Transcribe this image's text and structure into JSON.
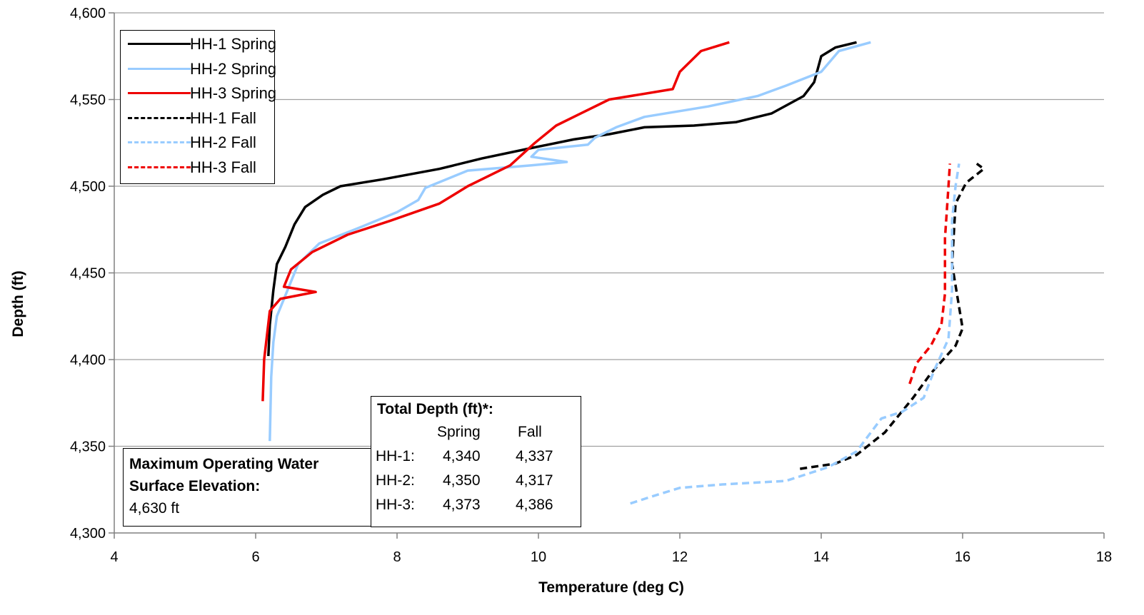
{
  "chart_data": {
    "type": "line",
    "title": "",
    "xlabel": "Temperature (deg C)",
    "ylabel": "Depth (ft)",
    "xlim": [
      4,
      18
    ],
    "ylim": [
      4300,
      4600
    ],
    "x_ticks": [
      "4",
      "6",
      "8",
      "10",
      "12",
      "14",
      "16",
      "18"
    ],
    "y_ticks": [
      "4,300",
      "4,350",
      "4,400",
      "4,450",
      "4,500",
      "4,550",
      "4,600"
    ],
    "grid": "horizontal",
    "legend_position": "top-left",
    "series": [
      {
        "name": "HH-1 Spring",
        "color": "#000000",
        "dash": "solid",
        "points": [
          [
            6.18,
            4402
          ],
          [
            6.2,
            4420
          ],
          [
            6.25,
            4440
          ],
          [
            6.3,
            4455
          ],
          [
            6.42,
            4465
          ],
          [
            6.55,
            4478
          ],
          [
            6.7,
            4488
          ],
          [
            6.95,
            4495
          ],
          [
            7.2,
            4500
          ],
          [
            7.8,
            4504
          ],
          [
            8.6,
            4510
          ],
          [
            9.2,
            4516
          ],
          [
            9.9,
            4522
          ],
          [
            10.5,
            4527
          ],
          [
            11.0,
            4530
          ],
          [
            11.5,
            4534
          ],
          [
            12.2,
            4535
          ],
          [
            12.8,
            4537
          ],
          [
            13.3,
            4542
          ],
          [
            13.75,
            4552
          ],
          [
            13.9,
            4560
          ],
          [
            14.0,
            4575
          ],
          [
            14.2,
            4580
          ],
          [
            14.5,
            4583
          ]
        ]
      },
      {
        "name": "HH-2 Spring",
        "color": "#99ccff",
        "dash": "solid",
        "points": [
          [
            6.2,
            4353
          ],
          [
            6.22,
            4390
          ],
          [
            6.25,
            4410
          ],
          [
            6.3,
            4425
          ],
          [
            6.45,
            4440
          ],
          [
            6.6,
            4455
          ],
          [
            6.9,
            4467
          ],
          [
            7.4,
            4475
          ],
          [
            8.0,
            4485
          ],
          [
            8.3,
            4492
          ],
          [
            8.4,
            4499
          ],
          [
            9.0,
            4509
          ],
          [
            9.9,
            4512
          ],
          [
            10.4,
            4514
          ],
          [
            9.9,
            4517
          ],
          [
            10.0,
            4521
          ],
          [
            10.7,
            4524
          ],
          [
            10.8,
            4528
          ],
          [
            11.1,
            4534
          ],
          [
            11.5,
            4540
          ],
          [
            12.4,
            4546
          ],
          [
            13.1,
            4552
          ],
          [
            13.5,
            4558
          ],
          [
            14.0,
            4566
          ],
          [
            14.25,
            4578
          ],
          [
            14.7,
            4583
          ]
        ]
      },
      {
        "name": "HH-3 Spring",
        "color": "#ee0000",
        "dash": "solid",
        "points": [
          [
            6.1,
            4376
          ],
          [
            6.12,
            4400
          ],
          [
            6.2,
            4428
          ],
          [
            6.35,
            4435
          ],
          [
            6.85,
            4439
          ],
          [
            6.4,
            4442
          ],
          [
            6.5,
            4452
          ],
          [
            6.8,
            4462
          ],
          [
            7.3,
            4472
          ],
          [
            7.9,
            4480
          ],
          [
            8.6,
            4490
          ],
          [
            9.0,
            4500
          ],
          [
            9.6,
            4512
          ],
          [
            9.95,
            4525
          ],
          [
            10.25,
            4535
          ],
          [
            10.6,
            4542
          ],
          [
            11.0,
            4550
          ],
          [
            11.9,
            4556
          ],
          [
            12.0,
            4566
          ],
          [
            12.3,
            4578
          ],
          [
            12.7,
            4583
          ]
        ]
      },
      {
        "name": "HH-1 Fall",
        "color": "#000000",
        "dash": "dashed",
        "points": [
          [
            13.7,
            4337
          ],
          [
            14.2,
            4340
          ],
          [
            14.5,
            4345
          ],
          [
            14.9,
            4358
          ],
          [
            15.3,
            4378
          ],
          [
            15.55,
            4392
          ],
          [
            15.9,
            4408
          ],
          [
            16.0,
            4418
          ],
          [
            15.85,
            4455
          ],
          [
            15.9,
            4490
          ],
          [
            16.05,
            4502
          ],
          [
            16.3,
            4510
          ],
          [
            16.2,
            4513
          ]
        ]
      },
      {
        "name": "HH-2 Fall",
        "color": "#99ccff",
        "dash": "dashed",
        "points": [
          [
            11.3,
            4317
          ],
          [
            11.6,
            4321
          ],
          [
            12.0,
            4326
          ],
          [
            12.6,
            4328
          ],
          [
            13.5,
            4330
          ],
          [
            14.1,
            4338
          ],
          [
            14.5,
            4347
          ],
          [
            14.85,
            4366
          ],
          [
            15.15,
            4370
          ],
          [
            15.45,
            4378
          ],
          [
            15.6,
            4394
          ],
          [
            15.8,
            4412
          ],
          [
            15.85,
            4440
          ],
          [
            15.85,
            4480
          ],
          [
            15.9,
            4500
          ],
          [
            15.95,
            4513
          ]
        ]
      },
      {
        "name": "HH-3 Fall",
        "color": "#ee0000",
        "dash": "dashed",
        "points": [
          [
            15.25,
            4386
          ],
          [
            15.35,
            4398
          ],
          [
            15.55,
            4408
          ],
          [
            15.7,
            4420
          ],
          [
            15.75,
            4438
          ],
          [
            15.75,
            4470
          ],
          [
            15.8,
            4500
          ],
          [
            15.82,
            4513
          ]
        ]
      }
    ],
    "annotations": {
      "max_operating": {
        "line1": "Maximum Operating Water",
        "line2": "Surface Elevation:",
        "value": "4,630 ft"
      },
      "total_depth": {
        "title": "Total Depth (ft)*:",
        "col_spring": "Spring",
        "col_fall": "Fall",
        "rows": [
          {
            "label": "HH-1:",
            "spring": "4,340",
            "fall": "4,337"
          },
          {
            "label": "HH-2:",
            "spring": "4,350",
            "fall": "4,317"
          },
          {
            "label": "HH-3:",
            "spring": "4,373",
            "fall": "4,386"
          }
        ]
      }
    }
  }
}
